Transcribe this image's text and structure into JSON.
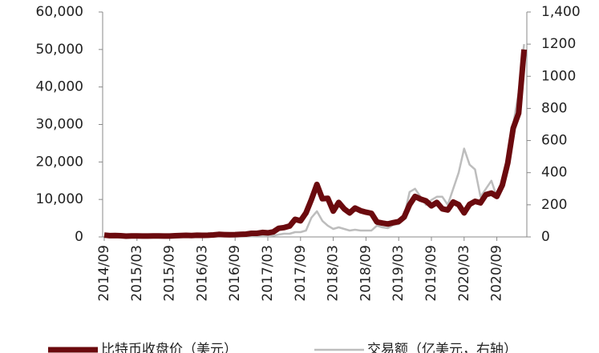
{
  "chart_data": {
    "type": "line",
    "x": [
      "2014/09",
      "2014/10",
      "2014/11",
      "2014/12",
      "2015/01",
      "2015/02",
      "2015/03",
      "2015/04",
      "2015/05",
      "2015/06",
      "2015/07",
      "2015/08",
      "2015/09",
      "2015/10",
      "2015/11",
      "2015/12",
      "2016/01",
      "2016/02",
      "2016/03",
      "2016/04",
      "2016/05",
      "2016/06",
      "2016/07",
      "2016/08",
      "2016/09",
      "2016/10",
      "2016/11",
      "2016/12",
      "2017/01",
      "2017/02",
      "2017/03",
      "2017/04",
      "2017/05",
      "2017/06",
      "2017/07",
      "2017/08",
      "2017/09",
      "2017/10",
      "2017/11",
      "2017/12",
      "2018/01",
      "2018/02",
      "2018/03",
      "2018/04",
      "2018/05",
      "2018/06",
      "2018/07",
      "2018/08",
      "2018/09",
      "2018/10",
      "2018/11",
      "2018/12",
      "2019/01",
      "2019/02",
      "2019/03",
      "2019/04",
      "2019/05",
      "2019/06",
      "2019/07",
      "2019/08",
      "2019/09",
      "2019/10",
      "2019/11",
      "2019/12",
      "2020/01",
      "2020/02",
      "2020/03",
      "2020/04",
      "2020/05",
      "2020/06",
      "2020/07",
      "2020/08",
      "2020/09",
      "2020/10",
      "2020/11",
      "2020/12",
      "2021/01",
      "2021/02"
    ],
    "series": [
      {
        "name": "比特币收盘价（美元）",
        "color": "#6b0a0e",
        "width": 7,
        "values": [
          500,
          350,
          380,
          320,
          220,
          250,
          250,
          240,
          230,
          260,
          280,
          230,
          240,
          310,
          380,
          430,
          370,
          440,
          420,
          450,
          530,
          680,
          620,
          580,
          610,
          700,
          740,
          960,
          970,
          1190,
          1080,
          1350,
          2300,
          2500,
          2900,
          4700,
          4300,
          6400,
          10000,
          14000,
          10200,
          10300,
          6900,
          9200,
          7500,
          6400,
          7700,
          7000,
          6600,
          6300,
          4000,
          3700,
          3450,
          3800,
          4100,
          5300,
          8600,
          10800,
          10100,
          9600,
          8300,
          9200,
          7500,
          7200,
          9300,
          8600,
          6400,
          8700,
          9500,
          9100,
          11300,
          11700,
          10800,
          13800,
          19700,
          29000,
          33000,
          50000
        ]
      },
      {
        "name": "交易额（亿美元，右轴）",
        "color": "#bdbdbd",
        "width": 2.5,
        "axis": "y2",
        "values": [
          1,
          1,
          1,
          1,
          1,
          1,
          1,
          1,
          1,
          1,
          1,
          1,
          1,
          1,
          2,
          2,
          2,
          2,
          2,
          2,
          2,
          3,
          3,
          2,
          2,
          3,
          3,
          4,
          5,
          5,
          5,
          8,
          15,
          20,
          20,
          30,
          30,
          40,
          120,
          160,
          100,
          70,
          50,
          60,
          50,
          40,
          45,
          40,
          40,
          40,
          70,
          60,
          55,
          75,
          80,
          130,
          280,
          300,
          250,
          200,
          230,
          250,
          250,
          200,
          300,
          400,
          550,
          450,
          420,
          250,
          300,
          350,
          250,
          300,
          450,
          700,
          900,
          1200
        ]
      }
    ],
    "xticks": [
      "2014/09",
      "2015/03",
      "2015/09",
      "2016/03",
      "2016/09",
      "2017/03",
      "2017/09",
      "2018/03",
      "2018/09",
      "2019/03",
      "2019/09",
      "2020/03",
      "2020/09"
    ],
    "ylim": [
      0,
      60000
    ],
    "yticks": [
      0,
      {
        "value": 10000,
        "label": "10,000"
      },
      {
        "value": 20000,
        "label": "20,000"
      },
      {
        "value": 30000,
        "label": "30,000"
      },
      {
        "value": 40000,
        "label": "40,000"
      },
      {
        "value": 50000,
        "label": "50,000"
      },
      {
        "value": 60000,
        "label": "60,000"
      }
    ],
    "y2lim": [
      0,
      1400
    ],
    "y2ticks": [
      0,
      200,
      400,
      600,
      800,
      1000,
      1200,
      {
        "value": 1400,
        "label": "1,400"
      }
    ]
  }
}
